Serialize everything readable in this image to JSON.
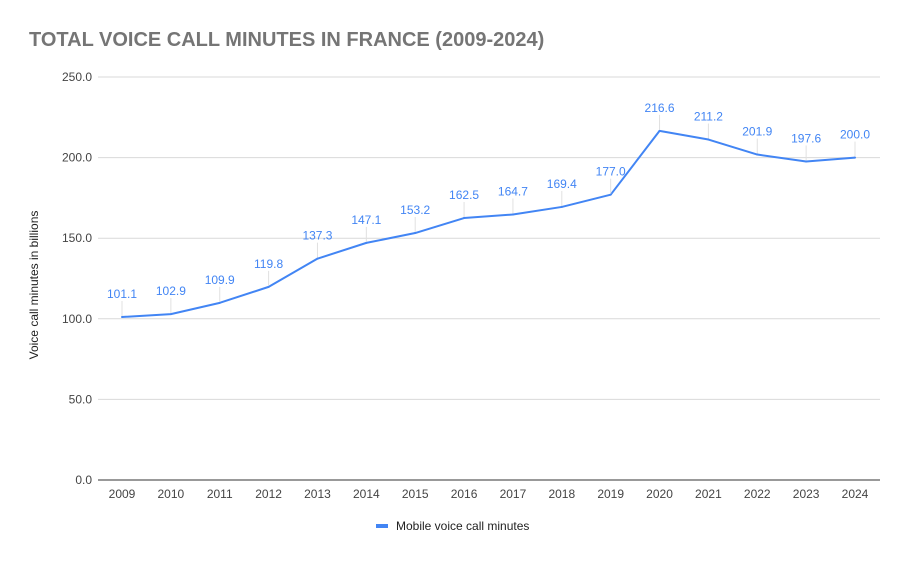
{
  "chart_data": {
    "type": "line",
    "title": "TOTAL VOICE CALL MINUTES IN FRANCE (2009-2024)",
    "xlabel": "",
    "ylabel": "Voice call minutes in billions",
    "ylim": [
      0,
      250
    ],
    "yticks": [
      "0.0",
      "50.0",
      "100.0",
      "150.0",
      "200.0",
      "250.0"
    ],
    "grid": true,
    "legend_placement": "bottom",
    "categories": [
      "2009",
      "2010",
      "2011",
      "2012",
      "2013",
      "2014",
      "2015",
      "2016",
      "2017",
      "2018",
      "2019",
      "2020",
      "2021",
      "2022",
      "2023",
      "2024"
    ],
    "series": [
      {
        "name": "Mobile voice call minutes",
        "color": "#4285f4",
        "values": [
          101.1,
          102.9,
          109.9,
          119.8,
          137.3,
          147.1,
          153.2,
          162.5,
          164.7,
          169.4,
          177.0,
          216.6,
          211.2,
          201.9,
          197.6,
          200.0
        ]
      }
    ]
  }
}
